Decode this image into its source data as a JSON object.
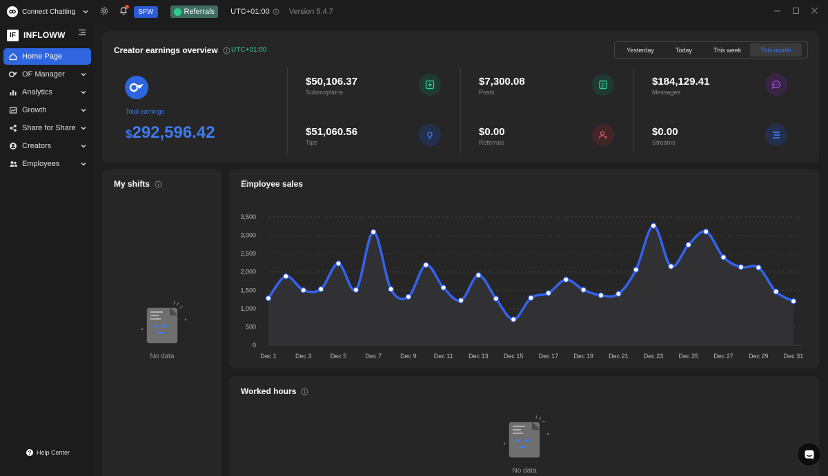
{
  "titlebar": {
    "account": "Connect Chatting",
    "sfw": "SFW",
    "referrals": "Referrals",
    "timezone": "UTC+01:00",
    "version": "Version 5.4.7"
  },
  "sidebar": {
    "brand": "INFLOWW",
    "items": [
      {
        "label": "Home Page",
        "icon": "home-icon"
      },
      {
        "label": "OF Manager",
        "icon": "of-icon"
      },
      {
        "label": "Analytics",
        "icon": "bar-chart-icon"
      },
      {
        "label": "Growth",
        "icon": "growth-icon"
      },
      {
        "label": "Share for Share",
        "icon": "share-icon"
      },
      {
        "label": "Creators",
        "icon": "user-icon"
      },
      {
        "label": "Employees",
        "icon": "users-icon"
      }
    ],
    "help": "Help Center"
  },
  "overview": {
    "title": "Creator earnings overview",
    "timezone": "UTC+01:00",
    "ranges": [
      "Yesterday",
      "Today",
      "This week",
      "This month"
    ],
    "active_range": "This month",
    "total_label": "Total earnings",
    "total_currency": "$",
    "total_value": "292,596.42",
    "metrics": [
      {
        "value": "$50,106.37",
        "label": "Subscriptions",
        "color": "#2ecc8f",
        "icon": "subscription-icon"
      },
      {
        "value": "$51,060.56",
        "label": "Tips",
        "color": "#3d7bf0",
        "icon": "bulb-icon"
      },
      {
        "value": "$7,300.08",
        "label": "Posts",
        "color": "#2ecc8f",
        "icon": "post-icon"
      },
      {
        "value": "$0.00",
        "label": "Referrals",
        "color": "#e05a5a",
        "icon": "referral-icon"
      },
      {
        "value": "$184,129.41",
        "label": "Messages",
        "color": "#a64cd8",
        "icon": "message-icon"
      },
      {
        "value": "$0.00",
        "label": "Streams",
        "color": "#3d7bf0",
        "icon": "stream-icon"
      }
    ]
  },
  "shifts": {
    "title": "My shifts",
    "empty": "No data"
  },
  "hours": {
    "title": "Worked hours",
    "empty": "No data"
  },
  "sales": {
    "title": "Employee sales"
  },
  "chart_data": {
    "type": "line",
    "title": "Employee sales",
    "xlabel": "",
    "ylabel": "",
    "ylim": [
      0,
      3500
    ],
    "yticks": [
      "0",
      "500",
      "1,000",
      "1,500",
      "2,000",
      "2,500",
      "3,000",
      "3,500"
    ],
    "ytick_values": [
      0,
      500,
      1000,
      1500,
      2000,
      2500,
      3000,
      3500
    ],
    "xtick_labels": [
      "Dec 1",
      "Dec 3",
      "Dec 5",
      "Dec 7",
      "Dec 9",
      "Dec 11",
      "Dec 13",
      "Dec 15",
      "Dec 17",
      "Dec 19",
      "Dec 21",
      "Dec 23",
      "Dec 25",
      "Dec 27",
      "Dec 29",
      "Dec 31"
    ],
    "x": [
      "Dec 1",
      "Dec 2",
      "Dec 3",
      "Dec 4",
      "Dec 5",
      "Dec 6",
      "Dec 7",
      "Dec 8",
      "Dec 9",
      "Dec 10",
      "Dec 11",
      "Dec 12",
      "Dec 13",
      "Dec 14",
      "Dec 15",
      "Dec 16",
      "Dec 17",
      "Dec 18",
      "Dec 19",
      "Dec 20",
      "Dec 21",
      "Dec 22",
      "Dec 23",
      "Dec 24",
      "Dec 25",
      "Dec 26",
      "Dec 27",
      "Dec 28",
      "Dec 29",
      "Dec 30",
      "Dec 31"
    ],
    "values": [
      1280,
      1880,
      1500,
      1530,
      2230,
      1510,
      3090,
      1530,
      1320,
      2190,
      1570,
      1220,
      1910,
      1270,
      700,
      1290,
      1420,
      1790,
      1510,
      1360,
      1400,
      2060,
      3260,
      2150,
      2740,
      3100,
      2400,
      2130,
      2120,
      1460,
      1200
    ],
    "line_color": "#3463f0",
    "grid": true
  }
}
